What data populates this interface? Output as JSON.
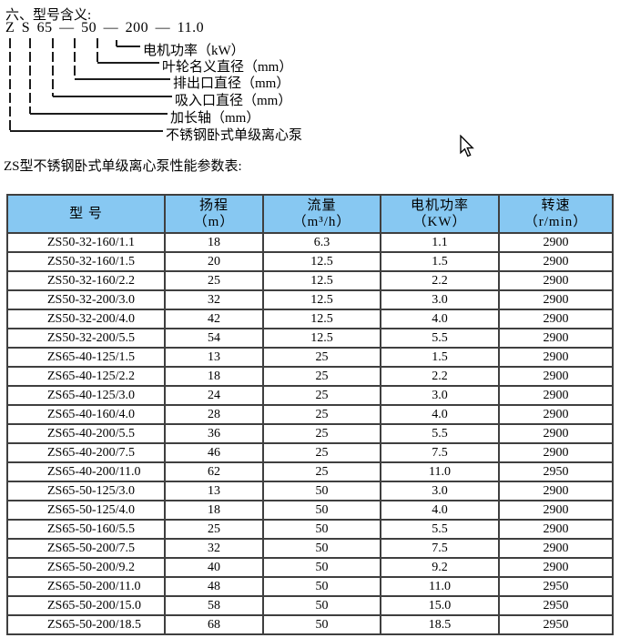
{
  "page": {
    "background": "#ffffff",
    "text_color": "#000000"
  },
  "diagram": {
    "title": "六、型号含义:",
    "model_code": "Z S 65 — 50 — 200 — 11.0",
    "labels": [
      "电机功率（kW）",
      "叶轮名义直径（mm）",
      "排出口直径（mm）",
      "吸入口直径（mm）",
      "加长轴（mm）",
      "不锈钢卧式单级离心泵"
    ]
  },
  "table": {
    "title": "ZS型不锈钢卧式单级离心泵性能参数表:",
    "header_bg": "#87c8f2",
    "border_color": "#3f3f3f",
    "headers": [
      {
        "line1": "型 号",
        "line2": ""
      },
      {
        "line1": "扬程",
        "line2": "（m）"
      },
      {
        "line1": "流量",
        "line2": "（m³/h）"
      },
      {
        "line1": "电机功率",
        "line2": "（KW）"
      },
      {
        "line1": "转速",
        "line2": "（r/min）"
      }
    ],
    "rows": [
      [
        "ZS50-32-160/1.1",
        "18",
        "6.3",
        "1.1",
        "2900"
      ],
      [
        "ZS50-32-160/1.5",
        "20",
        "12.5",
        "1.5",
        "2900"
      ],
      [
        "ZS50-32-160/2.2",
        "25",
        "12.5",
        "2.2",
        "2900"
      ],
      [
        "ZS50-32-200/3.0",
        "32",
        "12.5",
        "3.0",
        "2900"
      ],
      [
        "ZS50-32-200/4.0",
        "42",
        "12.5",
        "4.0",
        "2900"
      ],
      [
        "ZS50-32-200/5.5",
        "54",
        "12.5",
        "5.5",
        "2900"
      ],
      [
        "ZS65-40-125/1.5",
        "13",
        "25",
        "1.5",
        "2900"
      ],
      [
        "ZS65-40-125/2.2",
        "18",
        "25",
        "2.2",
        "2900"
      ],
      [
        "ZS65-40-125/3.0",
        "24",
        "25",
        "3.0",
        "2900"
      ],
      [
        "ZS65-40-160/4.0",
        "28",
        "25",
        "4.0",
        "2900"
      ],
      [
        "ZS65-40-200/5.5",
        "36",
        "25",
        "5.5",
        "2900"
      ],
      [
        "ZS65-40-200/7.5",
        "46",
        "25",
        "7.5",
        "2900"
      ],
      [
        "ZS65-40-200/11.0",
        "62",
        "25",
        "11.0",
        "2950"
      ],
      [
        "ZS65-50-125/3.0",
        "13",
        "50",
        "3.0",
        "2900"
      ],
      [
        "ZS65-50-125/4.0",
        "18",
        "50",
        "4.0",
        "2900"
      ],
      [
        "ZS65-50-160/5.5",
        "25",
        "50",
        "5.5",
        "2900"
      ],
      [
        "ZS65-50-200/7.5",
        "32",
        "50",
        "7.5",
        "2900"
      ],
      [
        "ZS65-50-200/9.2",
        "40",
        "50",
        "9.2",
        "2900"
      ],
      [
        "ZS65-50-200/11.0",
        "48",
        "50",
        "11.0",
        "2950"
      ],
      [
        "ZS65-50-200/15.0",
        "58",
        "50",
        "15.0",
        "2950"
      ],
      [
        "ZS65-50-200/18.5",
        "68",
        "50",
        "18.5",
        "2950"
      ]
    ]
  },
  "cursor": {
    "icon": "arrow-pointer"
  }
}
